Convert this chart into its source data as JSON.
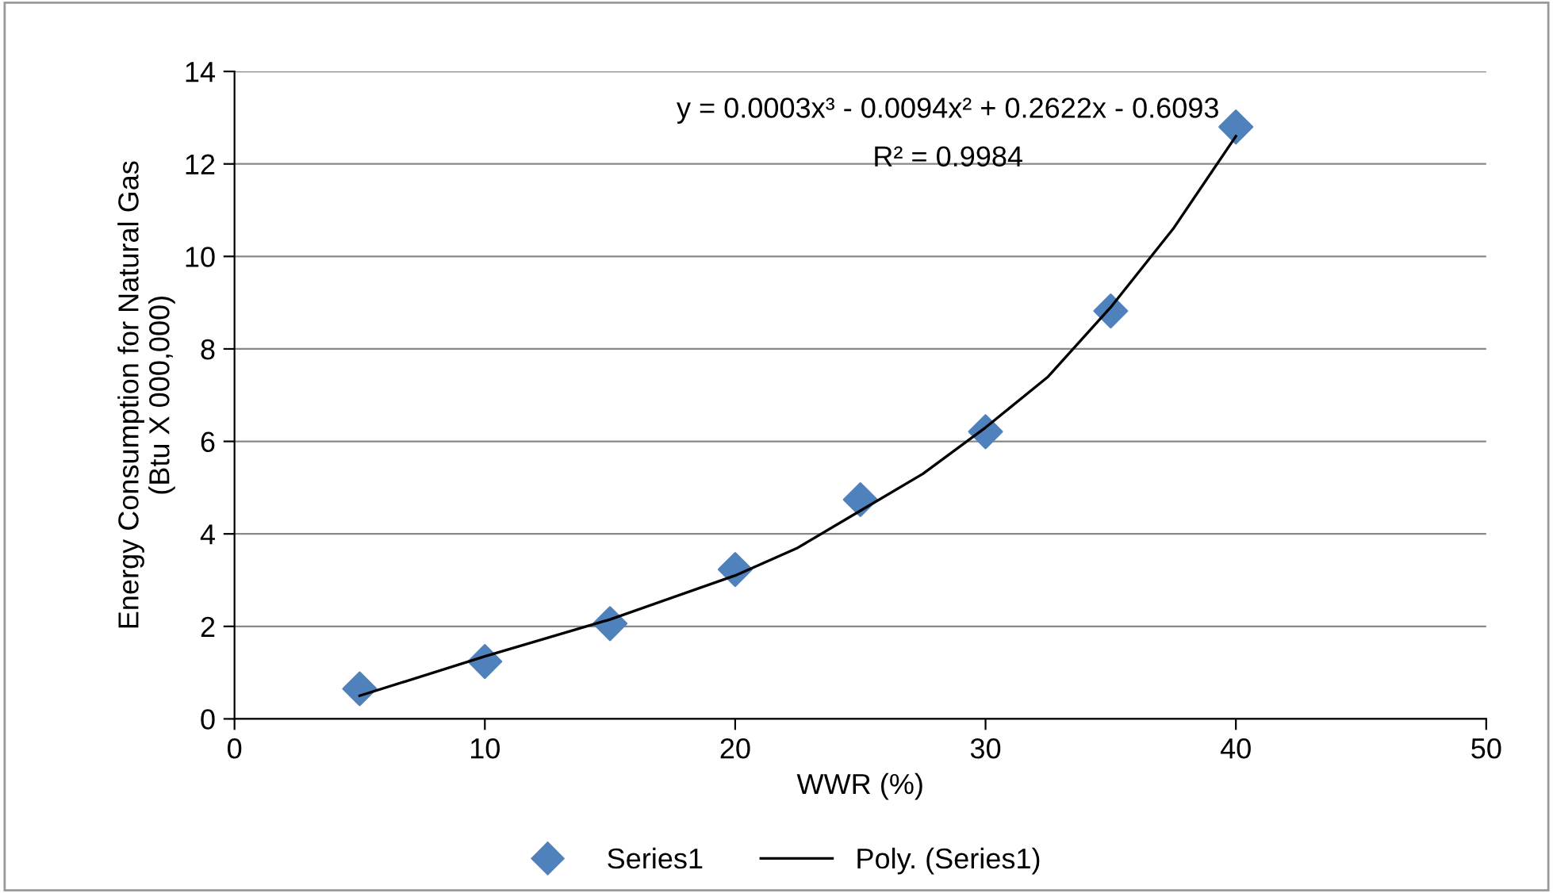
{
  "chart_data": {
    "type": "scatter",
    "xlabel": "WWR (%)",
    "ylabel": "Energy Consumption for Natural Gas\n(Btu X 000,000)",
    "xlim": [
      0,
      50
    ],
    "xticks": [
      0,
      10,
      20,
      30,
      40,
      50
    ],
    "ylim": [
      0,
      14
    ],
    "yticks": [
      0,
      2,
      4,
      6,
      8,
      10,
      12,
      14
    ],
    "grid": "y",
    "legend": "bottom",
    "annotations": [
      "y = 0.0003x³ - 0.0094x² + 0.2622x - 0.6093",
      "R² = 0.9984"
    ],
    "series": [
      {
        "name": "Series1",
        "marker": "diamond",
        "color": "#4f81bd",
        "x": [
          5,
          10,
          15,
          20,
          25,
          30,
          35,
          40
        ],
        "values": [
          0.65,
          1.24,
          2.06,
          3.23,
          4.74,
          6.21,
          8.82,
          12.8
        ]
      },
      {
        "name": "Poly. (Series1)",
        "type": "line",
        "color": "#000000",
        "line_style": "solid",
        "x": [
          5,
          10,
          15,
          20,
          22.5,
          25,
          27.5,
          30,
          32.5,
          35,
          37.5,
          40
        ],
        "values": [
          0.5,
          1.35,
          2.15,
          3.1,
          3.7,
          4.5,
          5.3,
          6.3,
          7.4,
          8.9,
          10.6,
          12.6
        ]
      }
    ]
  }
}
